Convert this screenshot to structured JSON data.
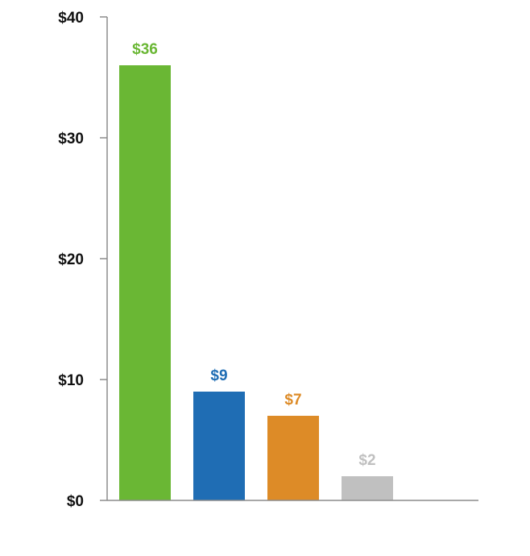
{
  "chart_data": {
    "type": "bar",
    "title": "",
    "xlabel": "",
    "ylabel": "",
    "ylim": [
      0,
      40
    ],
    "yticks": [
      0,
      10,
      20,
      30,
      40
    ],
    "ytick_labels": [
      "$0",
      "$10",
      "$20",
      "$30",
      "$40"
    ],
    "grid": false,
    "legend": "none",
    "bars": [
      {
        "value": 36,
        "label": "$36",
        "color": "#6ab734"
      },
      {
        "value": 9,
        "label": "$9",
        "color": "#1f6db4"
      },
      {
        "value": 7,
        "label": "$7",
        "color": "#dd8b27"
      },
      {
        "value": 2,
        "label": "$2",
        "color": "#c0c0c0"
      }
    ]
  }
}
